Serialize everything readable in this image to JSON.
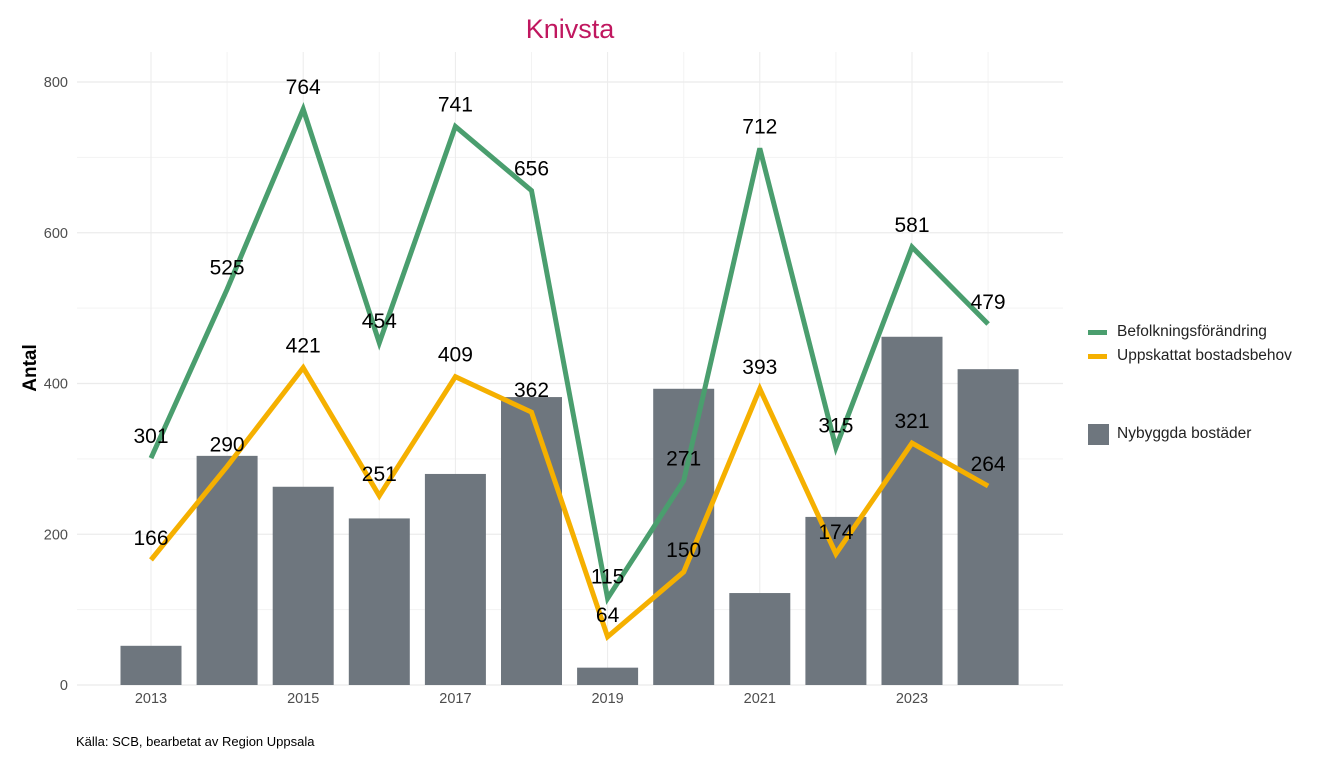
{
  "chart_data": {
    "type": "bar+line",
    "title": "Knivsta",
    "xlabel": "",
    "ylabel": "Antal",
    "ylim": [
      0,
      800
    ],
    "yticks": [
      0,
      200,
      400,
      600,
      800
    ],
    "xticks": [
      2013,
      2015,
      2017,
      2019,
      2021,
      2023
    ],
    "x": [
      2013,
      2014,
      2015,
      2016,
      2017,
      2018,
      2019,
      2020,
      2021,
      2022,
      2023,
      2024
    ],
    "bars": {
      "name": "Nybyggda bostäder",
      "color": "#6e767e",
      "values": [
        52,
        304,
        263,
        221,
        280,
        382,
        23,
        393,
        122,
        223,
        462,
        419
      ]
    },
    "series": [
      {
        "name": "Befolkningsförändring",
        "color": "#4a9e6e",
        "values": [
          301,
          525,
          764,
          454,
          741,
          656,
          115,
          271,
          712,
          315,
          581,
          479
        ]
      },
      {
        "name": "Uppskattat bostadsbehov",
        "color": "#f5b000",
        "values": [
          166,
          290,
          421,
          251,
          409,
          362,
          64,
          150,
          393,
          174,
          321,
          264
        ]
      }
    ],
    "grid": true,
    "legend_position": "right",
    "caption": "Källa: SCB, bearbetat av Region Uppsala"
  }
}
